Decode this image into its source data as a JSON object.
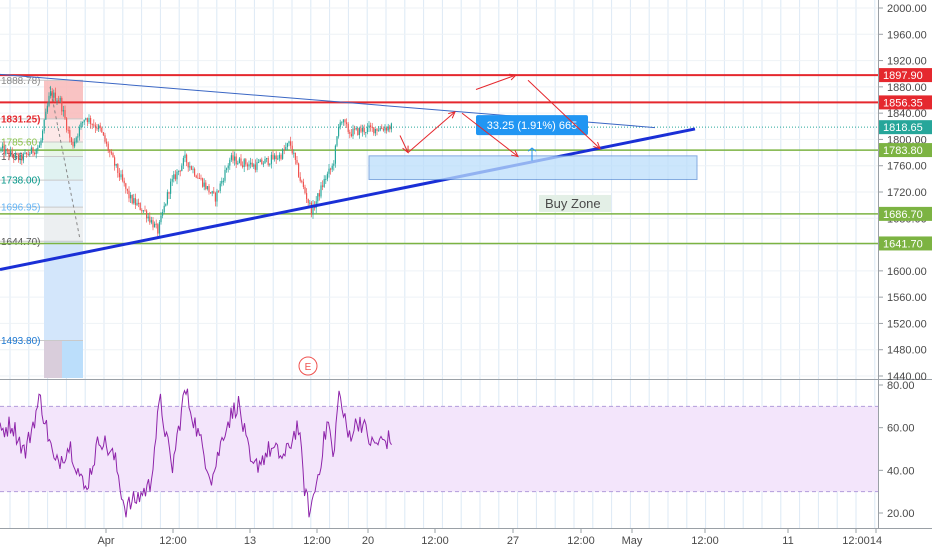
{
  "chart_data": [
    {
      "type": "candlestick",
      "title": "",
      "ylim": [
        1440,
        2000
      ],
      "y_ticks": [
        {
          "value": 1440,
          "label": "1440.00"
        },
        {
          "value": 1480,
          "label": "1480.00"
        },
        {
          "value": 1520,
          "label": "1520.00"
        },
        {
          "value": 1560,
          "label": "1560.00"
        },
        {
          "value": 1600,
          "label": "1600.00"
        },
        {
          "value": 1640,
          "label": "1640.00"
        },
        {
          "value": 1680,
          "label": "1680.00"
        },
        {
          "value": 1720,
          "label": "1720.00"
        },
        {
          "value": 1760,
          "label": "1760.00"
        },
        {
          "value": 1800,
          "label": "1800.00"
        },
        {
          "value": 1840,
          "label": "1840.00"
        },
        {
          "value": 1880,
          "label": "1880.00"
        },
        {
          "value": 1920,
          "label": "1920.00"
        },
        {
          "value": 1960,
          "label": "1960.00"
        },
        {
          "value": 2000,
          "label": "2000.00"
        }
      ],
      "price_levels": [
        {
          "label": "1897.90",
          "value": 1897.9,
          "color": "#e5282e"
        },
        {
          "label": "1856.35",
          "value": 1856.35,
          "color": "#e5282e"
        },
        {
          "label": "1818.65",
          "value": 1818.65,
          "color": "#26a69a"
        },
        {
          "label": "1783.80",
          "value": 1783.8,
          "color": "#7cb342"
        },
        {
          "label": "1686.70",
          "value": 1686.7,
          "color": "#7cb342"
        },
        {
          "label": "1641.70",
          "value": 1641.7,
          "color": "#7cb342"
        }
      ],
      "fib_labels": [
        {
          "label": "1888.78)",
          "value": 1890,
          "color": "#8a8a8a"
        },
        {
          "label": "1831.25)",
          "value": 1831.25,
          "color": "#e5282e"
        },
        {
          "label": "1785.60",
          "value": 1796,
          "color": "#8bc34a"
        },
        {
          "label": "1766",
          "value": 1774,
          "color": "#555555"
        },
        {
          "label": "1738.00)",
          "value": 1738,
          "color": "#009688"
        },
        {
          "label": "1696.95)",
          "value": 1697,
          "color": "#64b5f6"
        },
        {
          "label": "1644.70)",
          "value": 1645,
          "color": "#555555"
        },
        {
          "label": "1493.80)",
          "value": 1494,
          "color": "#1976d2"
        }
      ],
      "annotations": {
        "measure_label": "33.25 (1.91%) 665",
        "buy_zone_label": "Buy Zone",
        "event_marker": "E"
      },
      "colors": {
        "up": "#26a69a",
        "down": "#ef5350",
        "support": "#1a2fd6",
        "resistance": "#e5282e",
        "green_level": "#7cb342"
      }
    },
    {
      "type": "line",
      "indicator": "RSI",
      "ylim": [
        12,
        84
      ],
      "y_ticks": [
        {
          "value": 80,
          "label": "80.00"
        },
        {
          "value": 60,
          "label": "60.00"
        },
        {
          "value": 40,
          "label": "40.00"
        },
        {
          "value": 20,
          "label": "20.00"
        }
      ],
      "bands": [
        30,
        70
      ],
      "colors": {
        "line": "#8e24aa",
        "band_fill": "#f3e5fb"
      }
    }
  ],
  "x_axis": {
    "ticks": [
      "Apr",
      "12:00",
      "13",
      "12:00",
      "20",
      "12:00",
      "27",
      "12:00",
      "May",
      "12:00",
      "11",
      "12:00",
      "14"
    ]
  }
}
